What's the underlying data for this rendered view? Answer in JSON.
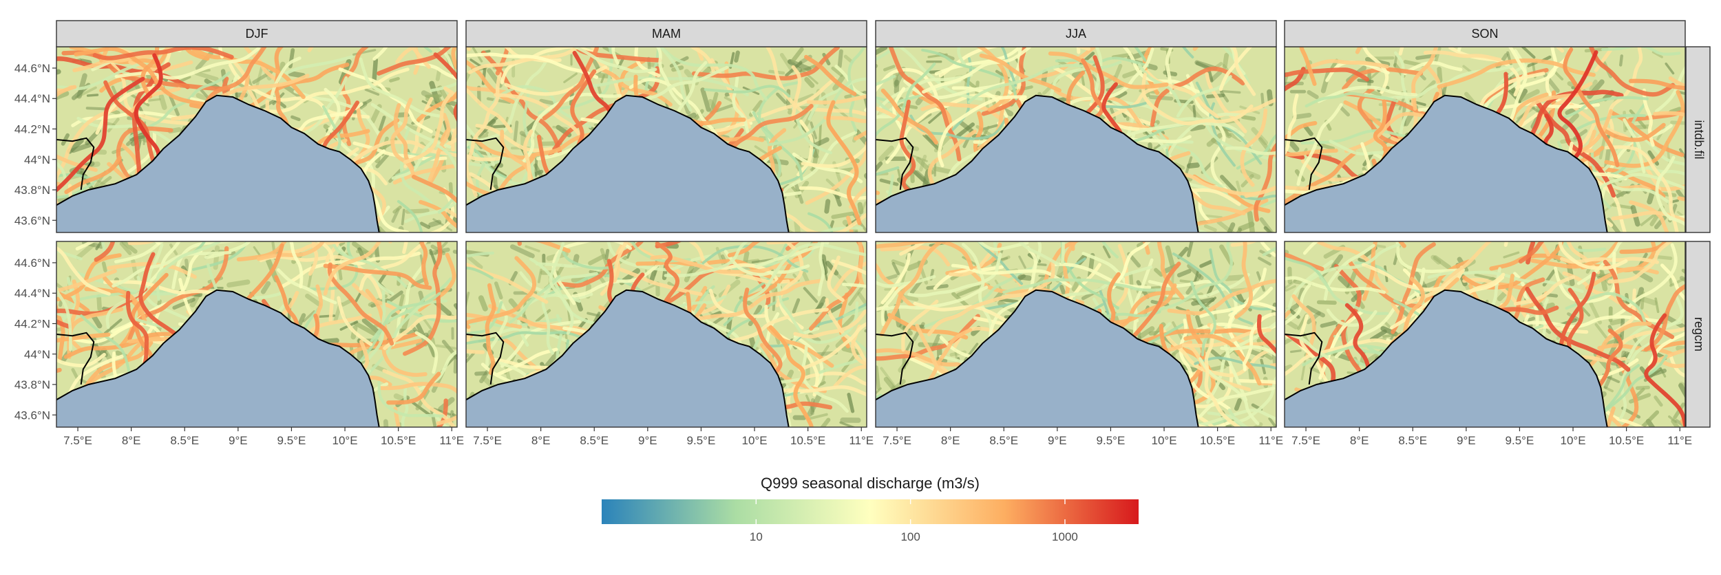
{
  "map": {
    "columns": [
      "DJF",
      "MAM",
      "JJA",
      "SON"
    ],
    "rows": [
      "intdb.fil",
      "regcm"
    ],
    "lat_labels": [
      "44.6°N",
      "44.4°N",
      "44.2°N",
      "44°N",
      "43.8°N",
      "43.6°N"
    ],
    "lon_labels": [
      "7.5°E",
      "8°E",
      "8.5°E",
      "9°E",
      "9.5°E",
      "10°E",
      "10.5°E",
      "11°E"
    ],
    "lat_values": [
      44.6,
      44.4,
      44.2,
      44.0,
      43.8,
      43.6
    ],
    "lon_values": [
      7.5,
      8.0,
      8.5,
      9.0,
      9.5,
      10.0,
      10.5,
      11.0
    ],
    "extent": {
      "lon": [
        7.3,
        11.05
      ],
      "lat": [
        43.52,
        44.74
      ]
    },
    "colors": {
      "sea": "#98b1c9",
      "land": "#d9e3a3",
      "coast": "#000000",
      "strip_bg": "#d9d9d9"
    }
  },
  "legend": {
    "title": "Q999 seasonal discharge (m3/s)",
    "tick_labels": [
      "10",
      "100",
      "1000"
    ],
    "tick_values": [
      10,
      100,
      1000
    ],
    "range": [
      1,
      3000
    ],
    "scale": "log10",
    "colors": [
      "#2b83ba",
      "#abdda4",
      "#ffffbf",
      "#fdae61",
      "#d7191c"
    ]
  }
}
